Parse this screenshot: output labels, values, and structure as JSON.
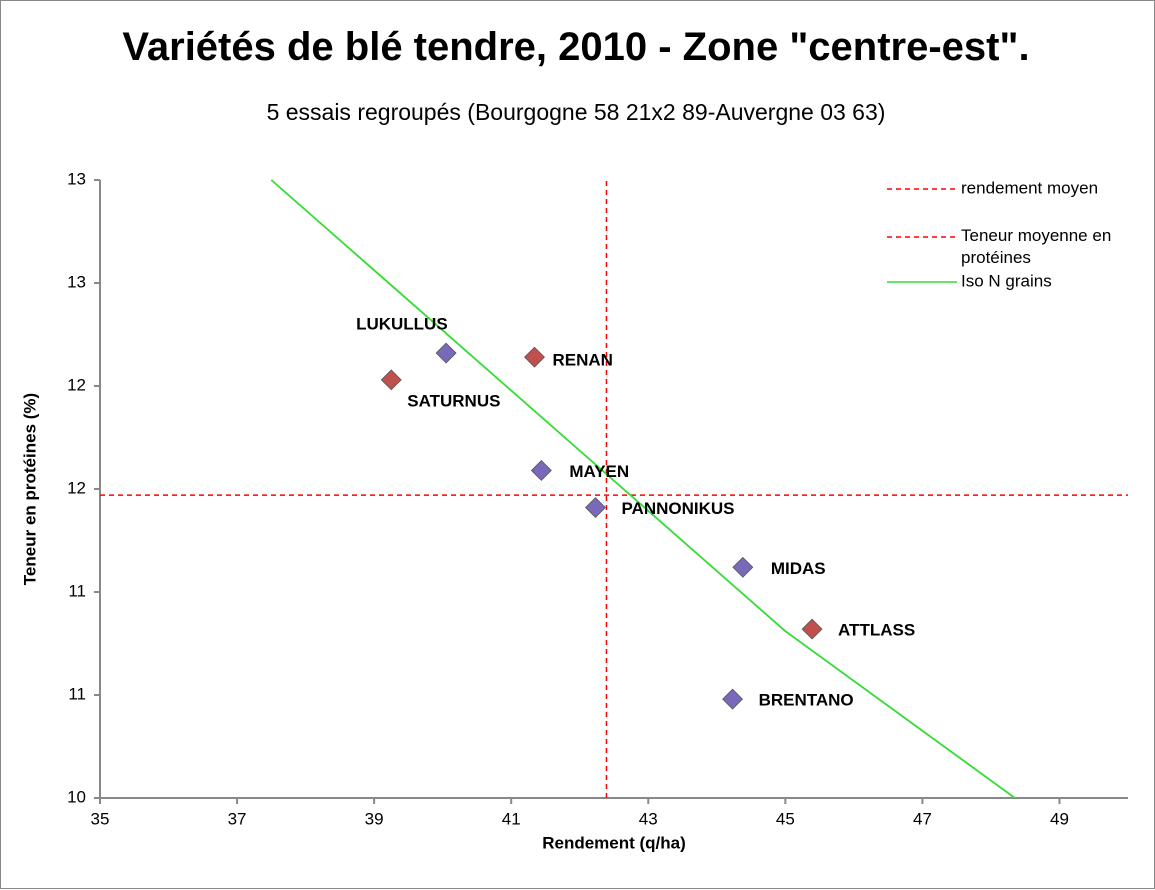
{
  "chart_data": {
    "type": "scatter",
    "title": "Variétés de blé tendre, 2010 - Zone \"centre-est\".",
    "subtitle": "5 essais regroupés (Bourgogne 58 21x2 89-Auvergne 03 63)",
    "x_label": "Rendement (q/ha)",
    "y_label": "Teneur en protéines (%)",
    "xlim": [
      35,
      50
    ],
    "xticks": [
      35,
      37,
      39,
      41,
      43,
      45,
      47,
      49
    ],
    "ylim": [
      10,
      13
    ],
    "yticks": [
      10,
      {
        "value": 10.5,
        "label": "11"
      },
      11,
      {
        "value": 11.5,
        "label": "12"
      },
      12,
      {
        "value": 12.5,
        "label": "13"
      },
      13
    ],
    "points": [
      {
        "label": "LUKULLUS",
        "x": 40.05,
        "y": 12.16,
        "color": "#7a68b8",
        "label_color": "#000000"
      },
      {
        "label": "RENAN",
        "x": 41.34,
        "y": 12.14,
        "color": "#c0504d",
        "label_color": "#ff0000"
      },
      {
        "label": "SATURNUS",
        "x": 39.25,
        "y": 12.03,
        "color": "#c0504d",
        "label_color": "#ff0000"
      },
      {
        "label": "MAYEN",
        "x": 41.44,
        "y": 11.59,
        "color": "#7a68b8",
        "label_color": "#000000"
      },
      {
        "label": "PANNONIKUS",
        "x": 42.23,
        "y": 11.41,
        "color": "#7a68b8",
        "label_color": "#000000"
      },
      {
        "label": "MIDAS",
        "x": 44.38,
        "y": 11.12,
        "color": "#7a68b8",
        "label_color": "#000000"
      },
      {
        "label": "ATTLASS",
        "x": 45.39,
        "y": 10.82,
        "color": "#c0504d",
        "label_color": "#ff0000"
      },
      {
        "label": "BRENTANO",
        "x": 44.23,
        "y": 10.48,
        "color": "#7a68b8",
        "label_color": "#000000"
      }
    ],
    "lines": [
      {
        "name": "rendement moyen",
        "color": "#ff0000",
        "dash": true,
        "x": [
          42.39,
          42.39
        ],
        "y": [
          10,
          13
        ]
      },
      {
        "name": "Teneur moyenne en protéines",
        "color": "#ff0000",
        "dash": true,
        "x": [
          35,
          50
        ],
        "y": [
          11.47,
          11.47
        ]
      },
      {
        "name": "Iso N grains",
        "color": "#33dd33",
        "dash": false,
        "x": [
          37.5,
          45,
          48.35
        ],
        "y": [
          13,
          10.81,
          10
        ]
      }
    ],
    "legend": "upper right"
  }
}
